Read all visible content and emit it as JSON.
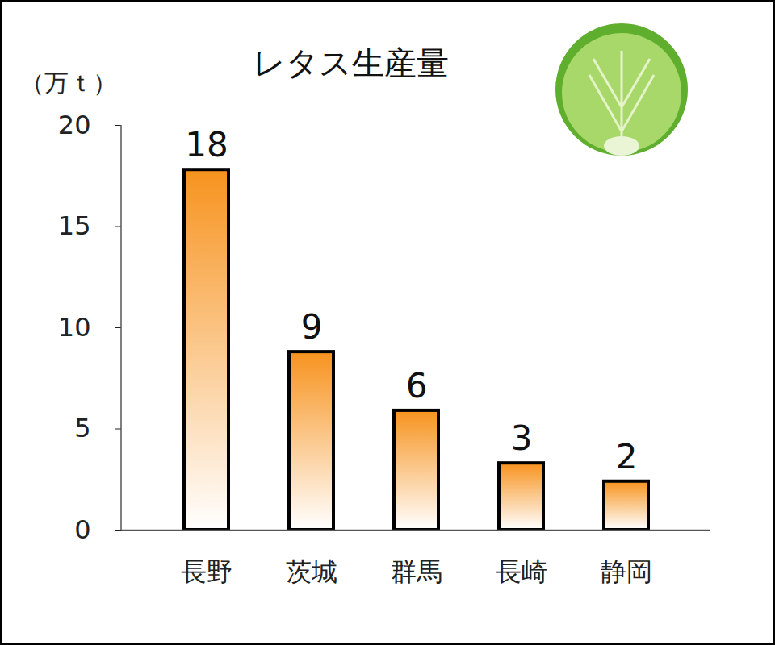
{
  "chart_data": {
    "type": "bar",
    "title": "レタス生産量",
    "y_label": "（万ｔ）",
    "categories": [
      "長野",
      "茨城",
      "群馬",
      "長崎",
      "静岡"
    ],
    "values": [
      17.8,
      8.8,
      5.9,
      3.3,
      2.4
    ],
    "value_labels": [
      "18",
      "9",
      "6",
      "3",
      "2"
    ],
    "data_labels": true,
    "color": "#f7931e",
    "ylim": [
      0,
      20
    ],
    "yticks": [
      0,
      5,
      10,
      15,
      20
    ],
    "grid": false
  }
}
